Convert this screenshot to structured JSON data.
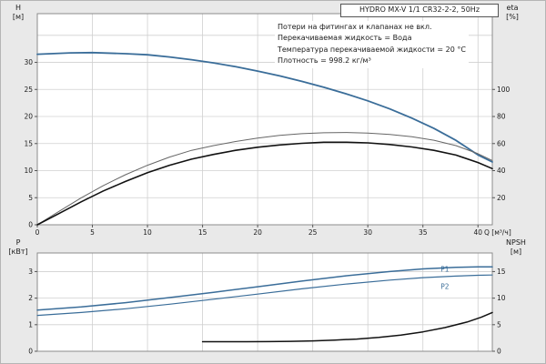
{
  "title": "HYDRO MX-V 1/1 CR32-2-2, 50Hz",
  "annotations": [
    "Потери на фитингах и клапанах не вкл.",
    "Перекачиваемая жидкость = Вода",
    "Температура перекачиваемой жидкости = 20 °C",
    "Плотность = 998.2 кг/м³"
  ],
  "colors": {
    "page_bg": "#e9e9e9",
    "plot_bg": "#ffffff",
    "grid": "#d0d0d0",
    "frame": "#8c8c8c",
    "text": "#1b1b1b",
    "blue": "#3a6d99",
    "gray": "#666666",
    "black": "#111111"
  },
  "chart_data": [
    {
      "type": "line",
      "name": "head-efficiency-chart",
      "xlabel": "Q [м³/ч]",
      "ylabel_left": [
        "H",
        "[м]"
      ],
      "ylabel_right": [
        "eta",
        "[%]"
      ],
      "xlim": [
        0,
        41.3
      ],
      "ylim_left": [
        0,
        39
      ],
      "ylim_right": [
        0,
        156
      ],
      "xticks": [
        0,
        5,
        10,
        15,
        20,
        25,
        30,
        35,
        40
      ],
      "yticks_left": [
        0,
        5,
        10,
        15,
        20,
        25,
        30
      ],
      "ygrid_extra": [
        35
      ],
      "yticks_right": [
        20,
        40,
        60,
        80,
        100
      ],
      "grid": true,
      "series": [
        {
          "name": "head-curve-H",
          "axis": "left",
          "color": "#3a6d99",
          "width": 1.8,
          "points": [
            [
              0,
              31.5
            ],
            [
              3,
              31.75
            ],
            [
              5,
              31.8
            ],
            [
              8,
              31.6
            ],
            [
              10,
              31.4
            ],
            [
              12,
              31.0
            ],
            [
              14,
              30.5
            ],
            [
              16,
              29.9
            ],
            [
              18,
              29.2
            ],
            [
              20,
              28.4
            ],
            [
              22,
              27.5
            ],
            [
              24,
              26.5
            ],
            [
              26,
              25.4
            ],
            [
              28,
              24.2
            ],
            [
              30,
              22.9
            ],
            [
              32,
              21.4
            ],
            [
              34,
              19.7
            ],
            [
              36,
              17.8
            ],
            [
              38,
              15.6
            ],
            [
              40,
              12.9
            ],
            [
              41.3,
              11.6
            ]
          ]
        },
        {
          "name": "efficiency-upper-eta",
          "axis": "right",
          "color": "#666666",
          "width": 1,
          "points": [
            [
              0,
              0
            ],
            [
              2,
              10
            ],
            [
              4,
              20
            ],
            [
              6,
              29
            ],
            [
              8,
              37
            ],
            [
              10,
              44
            ],
            [
              12,
              50
            ],
            [
              14,
              55
            ],
            [
              16,
              58.5
            ],
            [
              18,
              61.5
            ],
            [
              20,
              64
            ],
            [
              22,
              66
            ],
            [
              24,
              67.3
            ],
            [
              26,
              68
            ],
            [
              28,
              68.2
            ],
            [
              30,
              67.8
            ],
            [
              32,
              66.8
            ],
            [
              34,
              65
            ],
            [
              36,
              62.5
            ],
            [
              38,
              58.5
            ],
            [
              40,
              52.5
            ],
            [
              41.3,
              47.5
            ]
          ]
        },
        {
          "name": "efficiency-lower-eta",
          "axis": "right",
          "color": "#111111",
          "width": 1.6,
          "points": [
            [
              0,
              0
            ],
            [
              2,
              8.5
            ],
            [
              4,
              17
            ],
            [
              6,
              25
            ],
            [
              8,
              32
            ],
            [
              10,
              38.5
            ],
            [
              12,
              44
            ],
            [
              14,
              48.5
            ],
            [
              16,
              52
            ],
            [
              18,
              55
            ],
            [
              20,
              57.3
            ],
            [
              22,
              59
            ],
            [
              24,
              60.2
            ],
            [
              26,
              61
            ],
            [
              28,
              61
            ],
            [
              30,
              60.5
            ],
            [
              32,
              59.3
            ],
            [
              34,
              57.5
            ],
            [
              36,
              55
            ],
            [
              38,
              51.5
            ],
            [
              40,
              46
            ],
            [
              41.3,
              41.5
            ]
          ]
        }
      ]
    },
    {
      "type": "line",
      "name": "power-npsh-chart",
      "ylabel_left": [
        "P",
        "[кВт]"
      ],
      "ylabel_right": [
        "NPSH",
        "[м]"
      ],
      "xlim": [
        0,
        41.3
      ],
      "ylim_left": [
        0,
        3.7
      ],
      "ylim_right": [
        0,
        18.5
      ],
      "xgrid": [
        5,
        10,
        15,
        20,
        25,
        30,
        35,
        40
      ],
      "yticks_left": [
        0,
        1,
        2,
        3
      ],
      "yticks_right": [
        0,
        5,
        10,
        15
      ],
      "grid": true,
      "series": [
        {
          "name": "power-curve-P1",
          "axis": "left",
          "color": "#3a6d99",
          "width": 1.5,
          "label": "P1",
          "label_at": [
            37,
            3.0
          ],
          "points": [
            [
              0,
              1.55
            ],
            [
              4,
              1.67
            ],
            [
              8,
              1.83
            ],
            [
              12,
              2.02
            ],
            [
              16,
              2.22
            ],
            [
              20,
              2.43
            ],
            [
              24,
              2.64
            ],
            [
              28,
              2.84
            ],
            [
              32,
              3.0
            ],
            [
              35,
              3.1
            ],
            [
              38,
              3.16
            ],
            [
              40,
              3.18
            ],
            [
              41.3,
              3.18
            ]
          ]
        },
        {
          "name": "power-curve-P2",
          "axis": "left",
          "color": "#3a6d99",
          "width": 1.2,
          "label": "P2",
          "label_at": [
            37,
            2.35
          ],
          "points": [
            [
              0,
              1.35
            ],
            [
              4,
              1.46
            ],
            [
              8,
              1.6
            ],
            [
              12,
              1.77
            ],
            [
              16,
              1.96
            ],
            [
              20,
              2.15
            ],
            [
              24,
              2.35
            ],
            [
              28,
              2.53
            ],
            [
              32,
              2.68
            ],
            [
              35,
              2.77
            ],
            [
              38,
              2.83
            ],
            [
              40,
              2.86
            ],
            [
              41.3,
              2.87
            ]
          ]
        },
        {
          "name": "npsh-curve",
          "axis": "right",
          "color": "#111111",
          "width": 1.5,
          "points": [
            [
              15,
              1.8
            ],
            [
              17,
              1.8
            ],
            [
              19,
              1.8
            ],
            [
              21,
              1.82
            ],
            [
              23,
              1.87
            ],
            [
              25,
              1.95
            ],
            [
              27,
              2.1
            ],
            [
              29,
              2.3
            ],
            [
              31,
              2.6
            ],
            [
              33,
              3.05
            ],
            [
              35,
              3.65
            ],
            [
              37,
              4.45
            ],
            [
              39,
              5.5
            ],
            [
              40.3,
              6.4
            ],
            [
              41.3,
              7.3
            ]
          ]
        }
      ]
    }
  ]
}
